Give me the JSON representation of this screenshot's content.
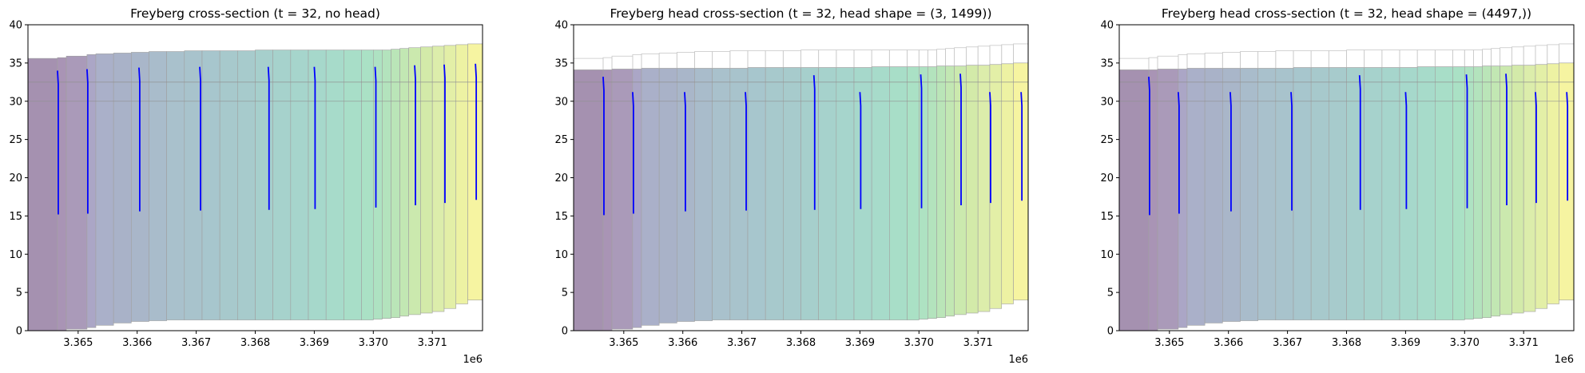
{
  "chart_data": [
    {
      "type": "area",
      "variant": "cross-section",
      "title": "Freyberg cross-section (t = 32, no head)",
      "xlim": [
        3364150,
        3371850
      ],
      "ylim": [
        0,
        40
      ],
      "x_ticks": [
        3365000,
        3366000,
        3367000,
        3368000,
        3369000,
        3370000,
        3371000
      ],
      "x_tick_labels": [
        "3.365",
        "3.366",
        "3.367",
        "3.368",
        "3.369",
        "3.370",
        "3.371"
      ],
      "y_ticks": [
        0,
        5,
        10,
        15,
        20,
        25,
        30,
        35,
        40
      ],
      "y_tick_labels": [
        "0",
        "5",
        "10",
        "15",
        "20",
        "25",
        "30",
        "35",
        "40"
      ],
      "x_offset_label": "1e6",
      "horizontal_lines": [
        30,
        32.5
      ],
      "head_shown": false,
      "wells": [
        {
          "x": 3364650,
          "top": 34.0,
          "bottom": 15.2
        },
        {
          "x": 3365150,
          "top": 34.2,
          "bottom": 15.3
        },
        {
          "x": 3366030,
          "top": 34.4,
          "bottom": 15.6
        },
        {
          "x": 3367060,
          "top": 34.5,
          "bottom": 15.7
        },
        {
          "x": 3368220,
          "top": 34.5,
          "bottom": 15.8
        },
        {
          "x": 3369000,
          "top": 34.5,
          "bottom": 15.9
        },
        {
          "x": 3370030,
          "top": 34.5,
          "bottom": 16.1
        },
        {
          "x": 3370700,
          "top": 34.7,
          "bottom": 16.4
        },
        {
          "x": 3371200,
          "top": 34.8,
          "bottom": 16.7
        },
        {
          "x": 3371730,
          "top": 34.9,
          "bottom": 17.1
        }
      ]
    },
    {
      "type": "area",
      "variant": "cross-section",
      "title": "Freyberg head cross-section (t = 32, head shape = (3, 1499))",
      "xlim": [
        3364150,
        3371850
      ],
      "ylim": [
        0,
        40
      ],
      "x_ticks": [
        3365000,
        3366000,
        3367000,
        3368000,
        3369000,
        3370000,
        3371000
      ],
      "x_tick_labels": [
        "3.365",
        "3.366",
        "3.367",
        "3.368",
        "3.369",
        "3.370",
        "3.371"
      ],
      "y_ticks": [
        0,
        5,
        10,
        15,
        20,
        25,
        30,
        35,
        40
      ],
      "y_tick_labels": [
        "0",
        "5",
        "10",
        "15",
        "20",
        "25",
        "30",
        "35",
        "40"
      ],
      "x_offset_label": "1e6",
      "horizontal_lines": [
        30,
        32.5
      ],
      "head_shown": true,
      "wells": [
        {
          "x": 3364650,
          "top": 33.2,
          "bottom": 15.1
        },
        {
          "x": 3365150,
          "top": 31.2,
          "bottom": 15.3
        },
        {
          "x": 3366030,
          "top": 31.2,
          "bottom": 15.6
        },
        {
          "x": 3367060,
          "top": 31.2,
          "bottom": 15.7
        },
        {
          "x": 3368220,
          "top": 33.4,
          "bottom": 15.8
        },
        {
          "x": 3369000,
          "top": 31.2,
          "bottom": 15.9
        },
        {
          "x": 3370030,
          "top": 33.5,
          "bottom": 16.0
        },
        {
          "x": 3370700,
          "top": 33.6,
          "bottom": 16.4
        },
        {
          "x": 3371200,
          "top": 31.2,
          "bottom": 16.7
        },
        {
          "x": 3371730,
          "top": 31.2,
          "bottom": 17.0
        }
      ]
    },
    {
      "type": "area",
      "variant": "cross-section",
      "title": "Freyberg head cross-section (t = 32, head shape = (4497,))",
      "xlim": [
        3364150,
        3371850
      ],
      "ylim": [
        0,
        40
      ],
      "x_ticks": [
        3365000,
        3366000,
        3367000,
        3368000,
        3369000,
        3370000,
        3371000
      ],
      "x_tick_labels": [
        "3.365",
        "3.366",
        "3.367",
        "3.368",
        "3.369",
        "3.370",
        "3.371"
      ],
      "y_ticks": [
        0,
        5,
        10,
        15,
        20,
        25,
        30,
        35,
        40
      ],
      "y_tick_labels": [
        "0",
        "5",
        "10",
        "15",
        "20",
        "25",
        "30",
        "35",
        "40"
      ],
      "x_offset_label": "1e6",
      "horizontal_lines": [
        30,
        32.5
      ],
      "head_shown": true,
      "wells": [
        {
          "x": 3364650,
          "top": 33.2,
          "bottom": 15.1
        },
        {
          "x": 3365150,
          "top": 31.2,
          "bottom": 15.3
        },
        {
          "x": 3366030,
          "top": 31.2,
          "bottom": 15.6
        },
        {
          "x": 3367060,
          "top": 31.2,
          "bottom": 15.7
        },
        {
          "x": 3368220,
          "top": 33.4,
          "bottom": 15.8
        },
        {
          "x": 3369000,
          "top": 31.2,
          "bottom": 15.9
        },
        {
          "x": 3370030,
          "top": 33.5,
          "bottom": 16.0
        },
        {
          "x": 3370700,
          "top": 33.6,
          "bottom": 16.4
        },
        {
          "x": 3371200,
          "top": 31.2,
          "bottom": 16.7
        },
        {
          "x": 3371730,
          "top": 31.2,
          "bottom": 17.0
        }
      ]
    }
  ],
  "cells": {
    "edges": [
      3364150,
      3364650,
      3364800,
      3365150,
      3365300,
      3365600,
      3365900,
      3366200,
      3366500,
      3366800,
      3367100,
      3367400,
      3367700,
      3368000,
      3368300,
      3368600,
      3368900,
      3369200,
      3369500,
      3369800,
      3370000,
      3370150,
      3370300,
      3370450,
      3370600,
      3370800,
      3371000,
      3371200,
      3371400,
      3371600,
      3371850
    ],
    "tops": [
      35.6,
      35.7,
      35.9,
      36.1,
      36.2,
      36.3,
      36.4,
      36.5,
      36.5,
      36.6,
      36.6,
      36.6,
      36.6,
      36.7,
      36.7,
      36.7,
      36.7,
      36.7,
      36.7,
      36.7,
      36.7,
      36.7,
      36.8,
      36.9,
      37.0,
      37.1,
      37.2,
      37.3,
      37.4,
      37.5
    ],
    "bottoms": [
      0,
      0,
      0.2,
      0.4,
      0.7,
      1.0,
      1.2,
      1.3,
      1.4,
      1.4,
      1.4,
      1.4,
      1.4,
      1.4,
      1.4,
      1.4,
      1.4,
      1.4,
      1.4,
      1.4,
      1.5,
      1.6,
      1.7,
      1.9,
      2.1,
      2.3,
      2.5,
      2.9,
      3.5,
      4.0
    ],
    "heads": [
      34.1,
      34.1,
      34.2,
      34.2,
      34.3,
      34.3,
      34.3,
      34.3,
      34.3,
      34.3,
      34.4,
      34.4,
      34.4,
      34.4,
      34.4,
      34.4,
      34.4,
      34.5,
      34.5,
      34.5,
      34.5,
      34.5,
      34.6,
      34.6,
      34.6,
      34.7,
      34.7,
      34.8,
      34.9,
      35.0
    ],
    "colors": [
      "#a591b0",
      "#a994b5",
      "#aa9ab9",
      "#aba6c6",
      "#aab0c9",
      "#a9b2c8",
      "#a9b6c9",
      "#a9bccb",
      "#a9c1cc",
      "#a8c3cc",
      "#a7c6cd",
      "#a7c9cc",
      "#a7cbcc",
      "#a6cfcc",
      "#a6d2cc",
      "#a6d5cc",
      "#a6d8cb",
      "#a7dbca",
      "#a8dec8",
      "#aae1c5",
      "#aee2c2",
      "#b3e3bd",
      "#bae5b8",
      "#c2e7b3",
      "#cbe9ae",
      "#d3eaa9",
      "#dcedab",
      "#e3efa7",
      "#edf2a3",
      "#f6f4a1"
    ],
    "edge_color": "#a0a0a0",
    "well_color": "#0000ff",
    "hline_color": "#909090"
  }
}
